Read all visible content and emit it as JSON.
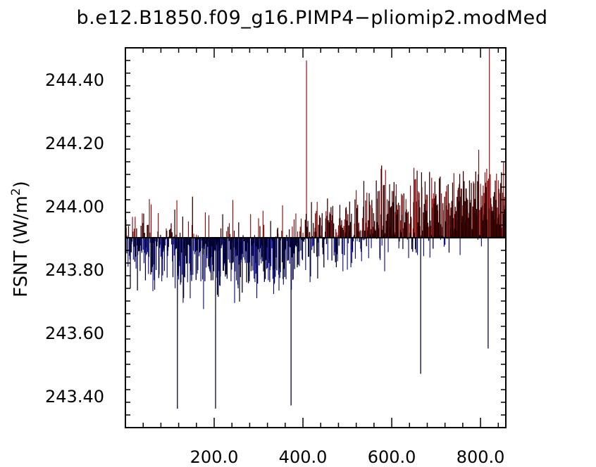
{
  "chart_data": {
    "type": "bar",
    "title": "b.e12.B1850.f09_g16.PIMP4−pliomip2.modMed",
    "xlabel": "",
    "ylabel_main": "FSNT (W/m",
    "ylabel_sup": "2",
    "ylabel_close": ")",
    "xlim": [
      0,
      857
    ],
    "ylim": [
      243.3,
      244.5
    ],
    "baseline": 243.9,
    "x_ticks": [
      {
        "value": 200,
        "label": "200.0"
      },
      {
        "value": 400,
        "label": "400.0"
      },
      {
        "value": 600,
        "label": "600.0"
      },
      {
        "value": 800,
        "label": "800.0"
      }
    ],
    "y_ticks": [
      {
        "value": 243.4,
        "label": "243.40"
      },
      {
        "value": 243.6,
        "label": "243.60"
      },
      {
        "value": 243.8,
        "label": "243.80"
      },
      {
        "value": 244.0,
        "label": "244.00"
      },
      {
        "value": 244.2,
        "label": "244.20"
      },
      {
        "value": 244.4,
        "label": "244.40"
      }
    ],
    "above_color": "#8b0000",
    "below_color": "#00008b",
    "n_points": 857,
    "notable_values": [
      {
        "x": 117,
        "y": 243.36
      },
      {
        "x": 203,
        "y": 243.36
      },
      {
        "x": 373,
        "y": 243.37
      },
      {
        "x": 408,
        "y": 244.46
      },
      {
        "x": 665,
        "y": 243.47
      },
      {
        "x": 817,
        "y": 243.55
      },
      {
        "x": 820,
        "y": 244.5
      }
    ],
    "trend": [
      {
        "x": 0,
        "y": 243.87
      },
      {
        "x": 200,
        "y": 243.84
      },
      {
        "x": 350,
        "y": 243.83
      },
      {
        "x": 450,
        "y": 243.9
      },
      {
        "x": 600,
        "y": 243.97
      },
      {
        "x": 857,
        "y": 244.02
      }
    ],
    "noise_sd": 0.12,
    "grid": false
  }
}
